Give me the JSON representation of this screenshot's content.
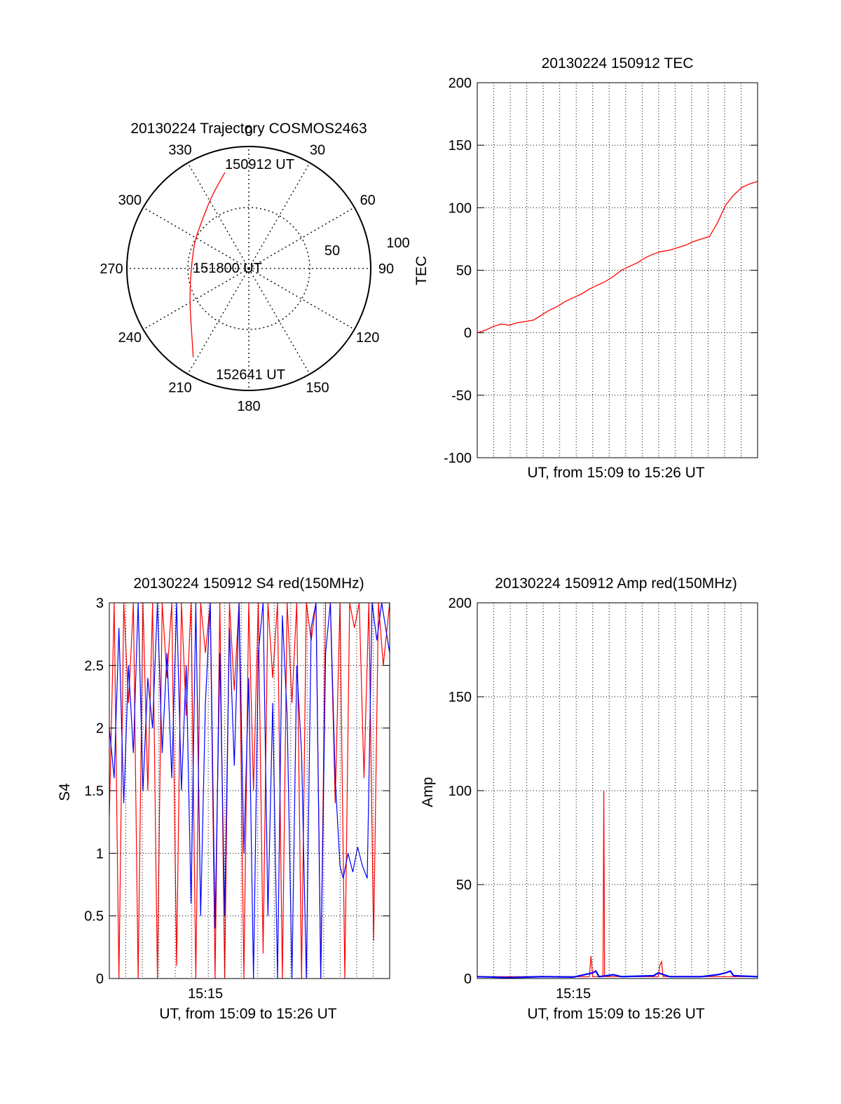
{
  "chart_data": [
    {
      "type": "polar",
      "title": "20130224 Trajectory COSMOS2463",
      "angle_ticks": [
        "0",
        "30",
        "60",
        "90",
        "120",
        "150",
        "180",
        "210",
        "240",
        "270",
        "300",
        "330"
      ],
      "radial_ticks": [
        "50",
        "100"
      ],
      "rlim": [
        0,
        100
      ],
      "grid": true,
      "series": [
        {
          "color": "#ff0000",
          "points": [
            {
              "az": 346,
              "r": 81
            },
            {
              "az": 334,
              "r": 68
            },
            {
              "az": 318,
              "r": 56
            },
            {
              "az": 298,
              "r": 50
            },
            {
              "az": 278,
              "r": 47
            },
            {
              "az": 258,
              "r": 49
            },
            {
              "az": 238,
              "r": 57
            },
            {
              "az": 222,
              "r": 70
            },
            {
              "az": 212,
              "r": 86
            }
          ]
        }
      ],
      "annotations": [
        {
          "text": "150912 UT",
          "az": 346,
          "r": 81
        },
        {
          "text": "151800 UT",
          "az": 275,
          "r": 47
        },
        {
          "text": "152641 UT",
          "az": 212,
          "r": 86
        }
      ]
    },
    {
      "type": "line",
      "title": "20130224 150912 TEC",
      "xlabel": "UT, from 15:09 to 15:26 UT",
      "ylabel": "TEC",
      "xlim_minutes": [
        0,
        17.5
      ],
      "ylim": [
        -100,
        200
      ],
      "yticks": [
        -100,
        -50,
        0,
        50,
        100,
        150,
        200
      ],
      "xticks": [],
      "grid": true,
      "series": [
        {
          "color": "#ff0000",
          "x": [
            0,
            0.5,
            1,
            1.5,
            2,
            2.5,
            3,
            3.5,
            4,
            4.5,
            5,
            5.5,
            6,
            6.5,
            7,
            7.5,
            8,
            8.5,
            9,
            9.5,
            10,
            10.5,
            11,
            11.5,
            12,
            12.5,
            13,
            13.5,
            14,
            14.5,
            15,
            15.5,
            16,
            16.5,
            17,
            17.5
          ],
          "y": [
            0,
            2,
            5,
            7,
            6,
            8,
            9,
            10,
            14,
            18,
            21,
            25,
            28,
            31,
            35,
            38,
            41,
            45,
            50,
            53,
            56,
            60,
            63,
            65,
            66,
            68,
            70,
            73,
            75,
            77,
            88,
            102,
            110,
            116,
            119,
            121
          ]
        }
      ]
    },
    {
      "type": "line",
      "title": "20130224 150912 S4 red(150MHz)",
      "xlabel": "UT, from 15:09 to 15:26 UT",
      "ylabel": "S4",
      "xlim_minutes": [
        0,
        17.5
      ],
      "ylim": [
        0,
        3
      ],
      "yticks": [
        "0",
        "0.5",
        "1",
        "1.5",
        "2",
        "2.5",
        "3"
      ],
      "xticks": [
        {
          "label": "15:15",
          "minute": 6
        }
      ],
      "grid": true,
      "series": [
        {
          "color": "#ff0000",
          "x": [
            0,
            0.3,
            0.6,
            0.9,
            1.2,
            1.5,
            1.8,
            2.1,
            2.4,
            2.7,
            3.0,
            3.3,
            3.6,
            3.9,
            4.2,
            4.5,
            4.8,
            5.1,
            5.4,
            5.7,
            6.0,
            6.3,
            6.6,
            6.9,
            7.2,
            7.5,
            7.8,
            8.1,
            8.4,
            8.7,
            9.0,
            9.3,
            9.6,
            9.9,
            10.2,
            10.5,
            10.8,
            11.1,
            11.4,
            11.7,
            12.0,
            12.3,
            12.6,
            12.9,
            13.2,
            13.5,
            13.8,
            14.1,
            14.4,
            14.7,
            15.0,
            15.3,
            15.6,
            15.9,
            16.2,
            16.5,
            16.8,
            17.1,
            17.5
          ],
          "y": [
            1.3,
            3,
            0,
            3,
            2.2,
            3,
            0,
            3,
            1.5,
            3,
            0,
            3,
            2.4,
            3,
            0.1,
            3,
            2.1,
            3,
            0,
            3,
            2.6,
            3,
            0,
            3,
            0,
            3,
            2.3,
            3,
            0,
            3,
            1.5,
            3,
            0.2,
            3,
            2.4,
            3,
            0,
            3,
            2.2,
            3,
            0,
            3,
            2.7,
            3,
            0,
            3,
            3,
            1.4,
            3,
            0,
            3,
            2.8,
            3,
            1.6,
            3,
            0.3,
            3,
            2.5,
            3
          ]
        },
        {
          "color": "#0000ff",
          "x": [
            0,
            0.3,
            0.6,
            0.9,
            1.2,
            1.5,
            1.8,
            2.1,
            2.4,
            2.7,
            3.0,
            3.3,
            3.6,
            3.9,
            4.2,
            4.5,
            4.8,
            5.1,
            5.4,
            5.7,
            6.0,
            6.3,
            6.6,
            6.9,
            7.2,
            7.5,
            7.8,
            8.1,
            8.4,
            8.7,
            9.0,
            9.3,
            9.6,
            9.9,
            10.2,
            10.5,
            10.8,
            11.1,
            11.4,
            11.7,
            12.0,
            12.3,
            12.6,
            12.9,
            13.2,
            13.5,
            13.8,
            14.1,
            14.4,
            14.6,
            14.9,
            15.2,
            15.5,
            15.8,
            16.1,
            16.4,
            16.7,
            17.0,
            17.5
          ],
          "y": [
            2.0,
            1.6,
            2.8,
            1.4,
            2.5,
            1.8,
            3,
            1.5,
            2.4,
            2.0,
            3,
            1.8,
            2.6,
            1.6,
            3,
            1.5,
            2.5,
            0.6,
            3,
            0.5,
            2.2,
            3,
            0.4,
            2.6,
            0.5,
            2.8,
            1.7,
            3,
            1.0,
            2.4,
            0.0,
            2.6,
            3,
            0.5,
            2.2,
            0,
            2.9,
            2.1,
            0,
            2.5,
            1.8,
            0,
            2.8,
            3,
            0,
            2.6,
            3,
            1.6,
            0.9,
            0.8,
            1.0,
            0.85,
            1.05,
            0.9,
            0.8,
            3,
            2.7,
            3,
            2.6
          ]
        }
      ]
    },
    {
      "type": "line",
      "title": "20130224 150912 Amp red(150MHz)",
      "xlabel": "UT, from 15:09 to 15:26 UT",
      "ylabel": "Amp",
      "xlim_minutes": [
        0,
        17.5
      ],
      "ylim": [
        0,
        200
      ],
      "yticks": [
        0,
        50,
        100,
        150,
        200
      ],
      "xticks": [
        {
          "label": "15:15",
          "minute": 6
        }
      ],
      "grid": true,
      "series": [
        {
          "color": "#ff0000",
          "x": [
            0,
            7.0,
            7.1,
            7.2,
            7.85,
            7.9,
            7.95,
            8.0,
            11.3,
            11.4,
            11.5,
            11.6,
            17.5
          ],
          "y": [
            1,
            1,
            12,
            1,
            1,
            100,
            1,
            1,
            1,
            7,
            9,
            1,
            1
          ]
        },
        {
          "color": "#0000ff",
          "x": [
            0,
            2,
            4,
            6,
            7.2,
            7.4,
            7.6,
            8.5,
            9,
            11,
            11.3,
            12,
            14,
            15.0,
            15.5,
            15.8,
            16,
            17.5
          ],
          "y": [
            1,
            0.5,
            1,
            0.8,
            3,
            4,
            1,
            2,
            1,
            1.5,
            3,
            1,
            1,
            2,
            3,
            4,
            1.5,
            1
          ]
        }
      ]
    }
  ]
}
